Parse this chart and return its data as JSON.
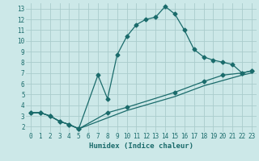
{
  "xlabel": "Humidex (Indice chaleur)",
  "ylabel": "",
  "bg_color": "#cce8e8",
  "grid_color": "#aacccc",
  "line_color": "#1a6b6b",
  "xlim": [
    -0.5,
    23.5
  ],
  "ylim": [
    1.5,
    13.5
  ],
  "xticks": [
    0,
    1,
    2,
    3,
    4,
    5,
    6,
    7,
    8,
    9,
    10,
    11,
    12,
    13,
    14,
    15,
    16,
    17,
    18,
    19,
    20,
    21,
    22,
    23
  ],
  "yticks": [
    2,
    3,
    4,
    5,
    6,
    7,
    8,
    9,
    10,
    11,
    12,
    13
  ],
  "line1_x": [
    0,
    1,
    2,
    3,
    4,
    5,
    7,
    8,
    9,
    10,
    11,
    12,
    13,
    14,
    15,
    16,
    17,
    18,
    19,
    20,
    21,
    22,
    23
  ],
  "line1_y": [
    3.3,
    3.3,
    3.0,
    2.5,
    2.2,
    1.8,
    6.8,
    4.6,
    8.7,
    10.4,
    11.5,
    12.0,
    12.2,
    13.2,
    12.5,
    11.0,
    9.2,
    8.5,
    8.2,
    8.0,
    7.8,
    7.0,
    7.2
  ],
  "line2_x": [
    0,
    1,
    2,
    3,
    4,
    5,
    8,
    10,
    15,
    18,
    20,
    22,
    23
  ],
  "line2_y": [
    3.3,
    3.3,
    3.0,
    2.5,
    2.2,
    1.8,
    3.3,
    3.8,
    5.2,
    6.2,
    6.8,
    7.0,
    7.2
  ],
  "line3_x": [
    0,
    1,
    2,
    3,
    4,
    5,
    10,
    15,
    18,
    20,
    22,
    23
  ],
  "line3_y": [
    3.3,
    3.3,
    3.0,
    2.5,
    2.2,
    1.8,
    3.5,
    4.8,
    5.8,
    6.3,
    6.8,
    7.0
  ],
  "marker": "D",
  "markersize": 2.5,
  "linewidth": 0.9,
  "tick_fontsize": 5.5,
  "xlabel_fontsize": 6.5
}
